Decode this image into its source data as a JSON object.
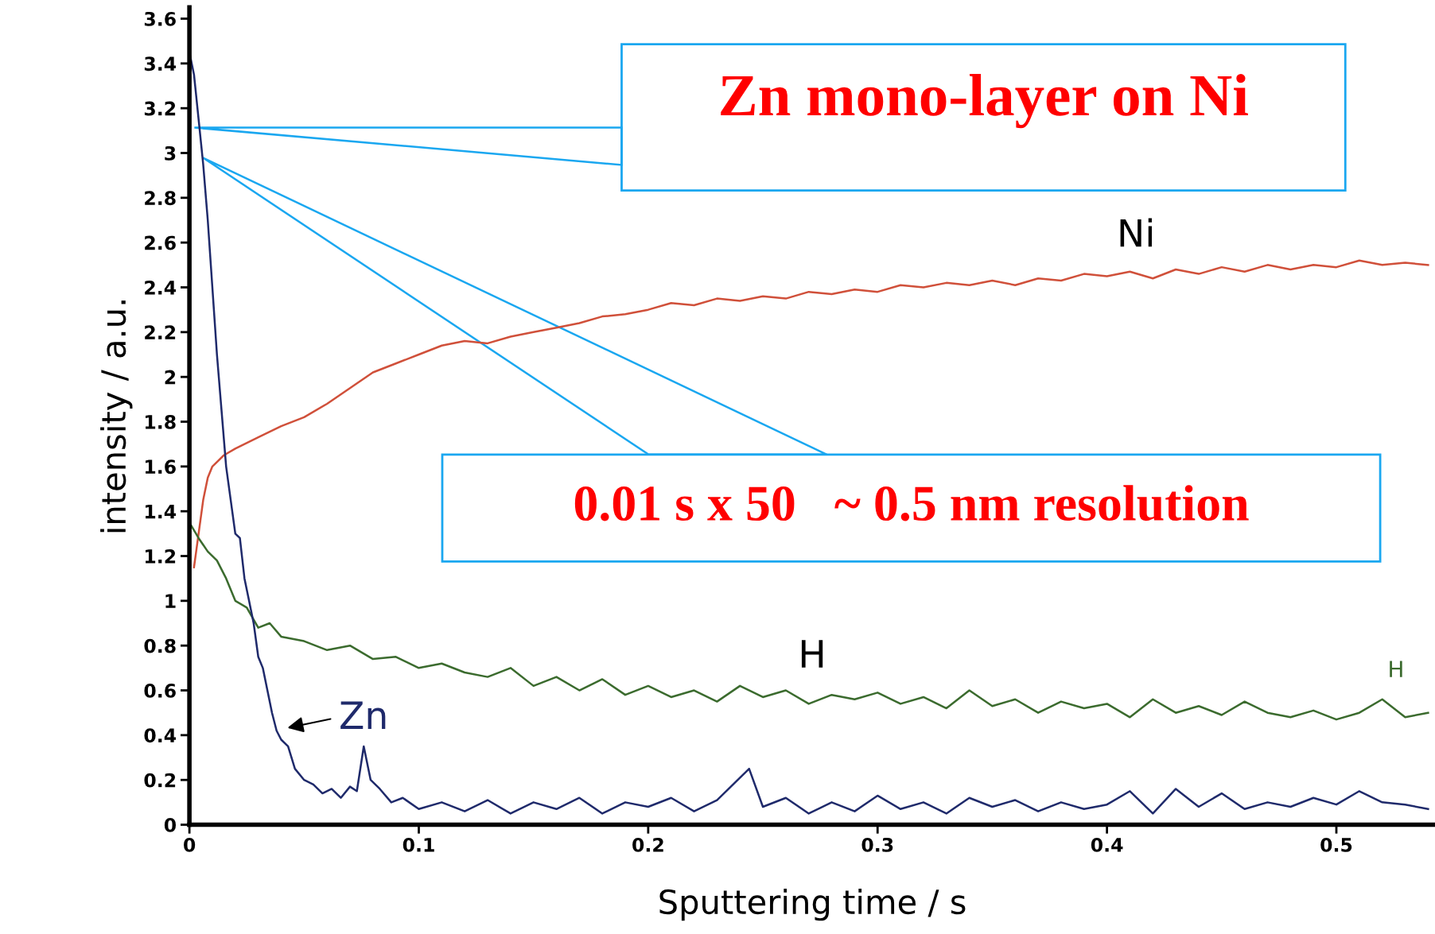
{
  "chart_data": {
    "type": "line",
    "xlabel": "Sputtering time / s",
    "ylabel": "intensity / a.u.",
    "xlim": [
      0,
      0.543
    ],
    "ylim": [
      0,
      3.65
    ],
    "xticks": [
      0,
      0.1,
      0.2,
      0.3,
      0.4,
      0.5
    ],
    "yticks": [
      0,
      0.2,
      0.4,
      0.6,
      0.8,
      1,
      1.2,
      1.4,
      1.6,
      1.8,
      2,
      2.2,
      2.4,
      2.6,
      2.8,
      3,
      3.2,
      3.4,
      3.6
    ],
    "grid": false,
    "legend": false,
    "marker": "none",
    "line_style": "solid",
    "annotations": [
      "Zn mono-layer on Ni",
      "0.01 s x 50   ~ 0.5 nm resolution",
      "H"
    ],
    "series": [
      {
        "name": "Ni",
        "color": "#d0503a",
        "x": [
          0.002,
          0.004,
          0.006,
          0.008,
          0.01,
          0.015,
          0.02,
          0.03,
          0.04,
          0.05,
          0.06,
          0.07,
          0.08,
          0.09,
          0.1,
          0.11,
          0.12,
          0.13,
          0.14,
          0.15,
          0.16,
          0.17,
          0.18,
          0.19,
          0.2,
          0.21,
          0.22,
          0.23,
          0.24,
          0.25,
          0.26,
          0.27,
          0.28,
          0.29,
          0.3,
          0.31,
          0.32,
          0.33,
          0.34,
          0.35,
          0.36,
          0.37,
          0.38,
          0.39,
          0.4,
          0.41,
          0.42,
          0.43,
          0.44,
          0.45,
          0.46,
          0.47,
          0.48,
          0.49,
          0.5,
          0.51,
          0.52,
          0.53,
          0.54
        ],
        "values": [
          1.15,
          1.3,
          1.45,
          1.55,
          1.6,
          1.65,
          1.68,
          1.73,
          1.78,
          1.82,
          1.88,
          1.95,
          2.02,
          2.06,
          2.1,
          2.14,
          2.16,
          2.15,
          2.18,
          2.2,
          2.22,
          2.24,
          2.27,
          2.28,
          2.3,
          2.33,
          2.32,
          2.35,
          2.34,
          2.36,
          2.35,
          2.38,
          2.37,
          2.39,
          2.38,
          2.41,
          2.4,
          2.42,
          2.41,
          2.43,
          2.41,
          2.44,
          2.43,
          2.46,
          2.45,
          2.47,
          2.44,
          2.48,
          2.46,
          2.49,
          2.47,
          2.5,
          2.48,
          2.5,
          2.49,
          2.52,
          2.5,
          2.51,
          2.5
        ]
      },
      {
        "name": "H",
        "color": "#3b6b2e",
        "x": [
          0,
          0.004,
          0.008,
          0.012,
          0.016,
          0.02,
          0.025,
          0.03,
          0.035,
          0.04,
          0.05,
          0.06,
          0.07,
          0.08,
          0.09,
          0.1,
          0.11,
          0.12,
          0.13,
          0.14,
          0.15,
          0.16,
          0.17,
          0.18,
          0.19,
          0.2,
          0.21,
          0.22,
          0.23,
          0.24,
          0.25,
          0.26,
          0.27,
          0.28,
          0.29,
          0.3,
          0.31,
          0.32,
          0.33,
          0.34,
          0.35,
          0.36,
          0.37,
          0.38,
          0.39,
          0.4,
          0.41,
          0.42,
          0.43,
          0.44,
          0.45,
          0.46,
          0.47,
          0.48,
          0.49,
          0.5,
          0.51,
          0.52,
          0.53,
          0.54
        ],
        "values": [
          1.35,
          1.28,
          1.22,
          1.18,
          1.1,
          1.0,
          0.97,
          0.88,
          0.9,
          0.84,
          0.82,
          0.78,
          0.8,
          0.74,
          0.75,
          0.7,
          0.72,
          0.68,
          0.66,
          0.7,
          0.62,
          0.66,
          0.6,
          0.65,
          0.58,
          0.62,
          0.57,
          0.6,
          0.55,
          0.62,
          0.57,
          0.6,
          0.54,
          0.58,
          0.56,
          0.59,
          0.54,
          0.57,
          0.52,
          0.6,
          0.53,
          0.56,
          0.5,
          0.55,
          0.52,
          0.54,
          0.48,
          0.56,
          0.5,
          0.53,
          0.49,
          0.55,
          0.5,
          0.48,
          0.51,
          0.47,
          0.5,
          0.56,
          0.48,
          0.5
        ]
      },
      {
        "name": "Zn",
        "color": "#1f2a6b",
        "x": [
          0,
          0.002,
          0.004,
          0.006,
          0.008,
          0.01,
          0.012,
          0.014,
          0.016,
          0.018,
          0.02,
          0.022,
          0.024,
          0.026,
          0.028,
          0.03,
          0.032,
          0.034,
          0.036,
          0.038,
          0.04,
          0.043,
          0.046,
          0.05,
          0.054,
          0.058,
          0.062,
          0.066,
          0.07,
          0.073,
          0.076,
          0.079,
          0.083,
          0.088,
          0.093,
          0.1,
          0.11,
          0.12,
          0.13,
          0.14,
          0.15,
          0.16,
          0.17,
          0.18,
          0.19,
          0.2,
          0.21,
          0.22,
          0.23,
          0.244,
          0.25,
          0.26,
          0.27,
          0.28,
          0.29,
          0.3,
          0.31,
          0.32,
          0.33,
          0.34,
          0.35,
          0.36,
          0.37,
          0.38,
          0.39,
          0.4,
          0.41,
          0.42,
          0.43,
          0.44,
          0.45,
          0.46,
          0.47,
          0.48,
          0.49,
          0.5,
          0.51,
          0.52,
          0.53,
          0.54
        ],
        "values": [
          3.45,
          3.35,
          3.15,
          2.95,
          2.7,
          2.4,
          2.1,
          1.85,
          1.6,
          1.45,
          1.3,
          1.28,
          1.1,
          1.0,
          0.9,
          0.75,
          0.7,
          0.6,
          0.5,
          0.42,
          0.38,
          0.35,
          0.25,
          0.2,
          0.18,
          0.14,
          0.16,
          0.12,
          0.17,
          0.15,
          0.35,
          0.2,
          0.16,
          0.1,
          0.12,
          0.07,
          0.1,
          0.06,
          0.11,
          0.05,
          0.1,
          0.07,
          0.12,
          0.05,
          0.1,
          0.08,
          0.12,
          0.06,
          0.11,
          0.25,
          0.08,
          0.12,
          0.05,
          0.1,
          0.06,
          0.13,
          0.07,
          0.1,
          0.05,
          0.12,
          0.08,
          0.11,
          0.06,
          0.1,
          0.07,
          0.09,
          0.15,
          0.05,
          0.16,
          0.08,
          0.14,
          0.07,
          0.1,
          0.08,
          0.12,
          0.09,
          0.15,
          0.1,
          0.09,
          0.07
        ]
      }
    ]
  }
}
